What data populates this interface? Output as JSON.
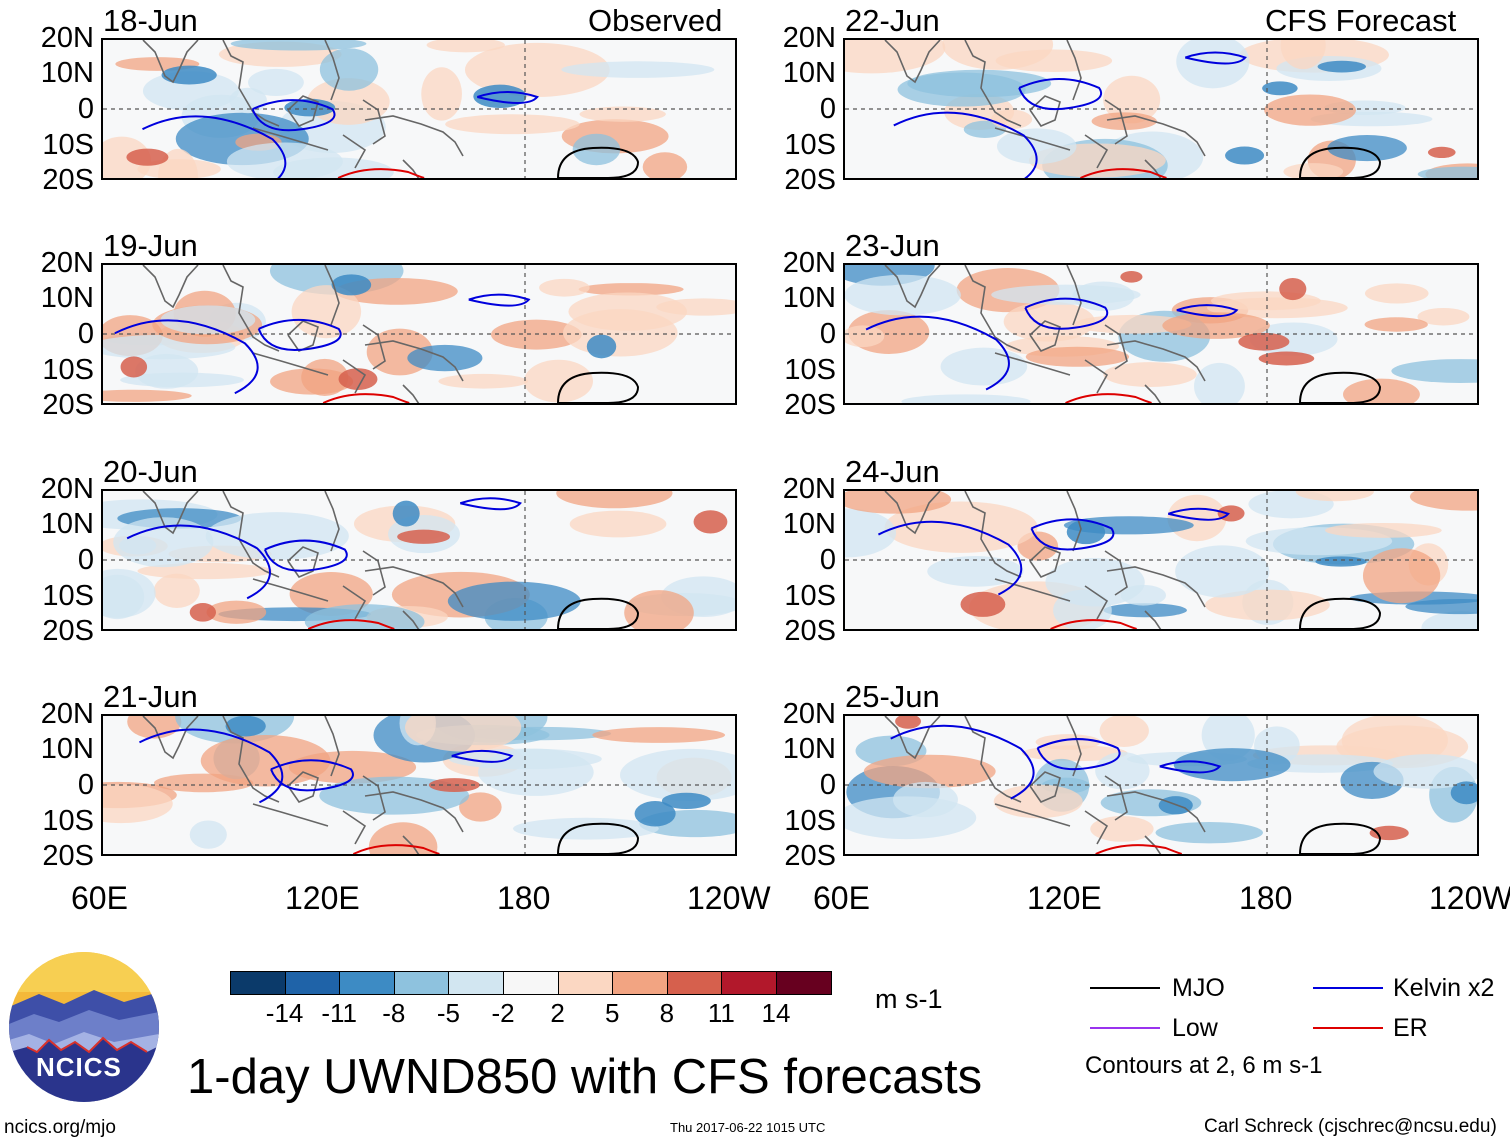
{
  "panel_labels": {
    "observed": "Observed",
    "forecast": "CFS Forecast"
  },
  "panels": [
    {
      "date": "18-Jun"
    },
    {
      "date": "19-Jun"
    },
    {
      "date": "20-Jun"
    },
    {
      "date": "21-Jun"
    },
    {
      "date": "22-Jun"
    },
    {
      "date": "23-Jun"
    },
    {
      "date": "24-Jun"
    },
    {
      "date": "25-Jun"
    }
  ],
  "lat_ticks": [
    "20N",
    "10N",
    "0",
    "10S",
    "20S"
  ],
  "lon_ticks": [
    "60E",
    "120E",
    "180",
    "120W"
  ],
  "colorbar": {
    "colors": [
      "#0b3a6a",
      "#1f63a8",
      "#3d8bc4",
      "#8ec2de",
      "#d2e6f1",
      "#f7f7f7",
      "#fbd7c2",
      "#f2a482",
      "#d6604d",
      "#b2182b",
      "#67001f"
    ],
    "ticks": [
      "-14",
      "-11",
      "-8",
      "-5",
      "-2",
      "2",
      "5",
      "8",
      "11",
      "14"
    ],
    "units": "m s-1"
  },
  "legend": [
    {
      "label": "MJO",
      "color": "#000000"
    },
    {
      "label": "Kelvin x2",
      "color": "#0000dd"
    },
    {
      "label": "Low",
      "color": "#9933ee"
    },
    {
      "label": "ER",
      "color": "#dd0000"
    }
  ],
  "contours_note": "Contours at 2, 6 m s-1",
  "title": "1-day UWND850 with CFS forecasts",
  "logo_text": "NCICS",
  "footer": {
    "left": "ncics.org/mjo",
    "middle": "Thu 2017-06-22 1015 UTC",
    "right": "Carl Schreck (cjschrec@ncsu.edu)"
  },
  "chart_data": {
    "type": "heatmap",
    "title": "1-day UWND850 with CFS forecasts",
    "variable": "850-hPa zonal wind anomaly",
    "units": "m s-1",
    "x_range": [
      "60E",
      "120W"
    ],
    "y_range": [
      "20S",
      "20N"
    ],
    "columns": [
      "Observed",
      "CFS Forecast"
    ],
    "dates": [
      "18-Jun",
      "19-Jun",
      "20-Jun",
      "21-Jun",
      "22-Jun",
      "23-Jun",
      "24-Jun",
      "25-Jun"
    ],
    "shading_levels": [
      -14,
      -11,
      -8,
      -5,
      -2,
      2,
      5,
      8,
      11,
      14
    ],
    "contour_levels": [
      2,
      6
    ],
    "contour_series": [
      "MJO",
      "Kelvin x2",
      "Low",
      "ER"
    ]
  }
}
